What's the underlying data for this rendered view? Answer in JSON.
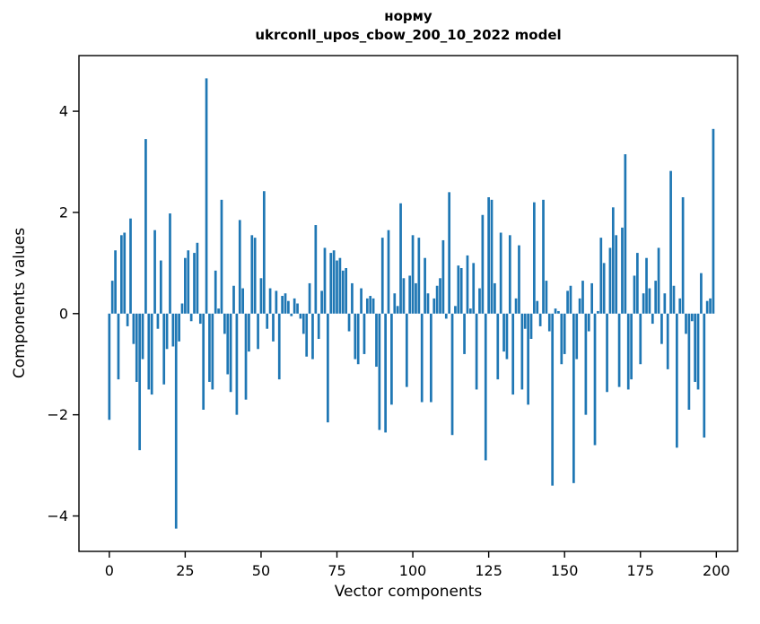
{
  "chart_data": {
    "type": "bar",
    "title_line1": "норму",
    "title_line2": "ukrconll_upos_cbow_200_10_2022 model",
    "xlabel": "Vector components",
    "ylabel": "Components values",
    "bar_color": "#1f77b4",
    "grid": false,
    "legend": "none",
    "xticks": [
      0,
      25,
      50,
      75,
      100,
      125,
      150,
      175,
      200
    ],
    "yticks": [
      -4,
      -2,
      0,
      2,
      4
    ],
    "xlim": [
      -10,
      207
    ],
    "ylim": [
      -4.7,
      5.1
    ],
    "x_start": 0,
    "values": [
      -2.1,
      0.65,
      1.25,
      -1.3,
      1.55,
      1.6,
      -0.25,
      1.88,
      -0.6,
      -1.35,
      -2.7,
      -0.9,
      3.45,
      -1.5,
      -1.6,
      1.65,
      -0.3,
      1.05,
      -1.4,
      -0.7,
      1.98,
      -0.65,
      -4.25,
      -0.55,
      0.2,
      1.1,
      1.25,
      -0.15,
      1.2,
      1.4,
      -0.2,
      -1.9,
      4.65,
      -1.35,
      -1.5,
      0.85,
      0.1,
      2.25,
      -0.4,
      -1.2,
      -1.55,
      0.55,
      -2.0,
      1.85,
      0.5,
      -1.7,
      -0.75,
      1.55,
      1.5,
      -0.7,
      0.7,
      2.42,
      -0.3,
      0.5,
      -0.55,
      0.45,
      -1.3,
      0.35,
      0.4,
      0.25,
      -0.05,
      0.3,
      0.2,
      -0.1,
      -0.4,
      -0.85,
      0.6,
      -0.9,
      1.75,
      -0.5,
      0.45,
      1.3,
      -2.15,
      1.2,
      1.25,
      1.05,
      1.1,
      0.85,
      0.9,
      -0.35,
      0.6,
      -0.9,
      -1.0,
      0.5,
      -0.8,
      0.3,
      0.35,
      0.3,
      -1.05,
      -2.3,
      1.5,
      -2.35,
      1.65,
      -1.8,
      0.4,
      0.15,
      2.18,
      0.7,
      -1.45,
      0.75,
      1.55,
      0.6,
      1.5,
      -1.75,
      1.1,
      0.4,
      -1.75,
      0.3,
      0.55,
      0.7,
      1.45,
      -0.1,
      2.4,
      -2.4,
      0.15,
      0.95,
      0.9,
      -0.8,
      1.15,
      0.1,
      1.0,
      -1.5,
      0.5,
      1.95,
      -2.9,
      2.3,
      2.25,
      0.6,
      -1.3,
      1.6,
      -0.75,
      -0.9,
      1.55,
      -1.6,
      0.3,
      1.35,
      -1.5,
      -0.3,
      -1.8,
      -0.5,
      2.2,
      0.25,
      -0.25,
      2.25,
      0.65,
      -0.35,
      -3.4,
      0.1,
      0.05,
      -1.0,
      -0.8,
      0.45,
      0.55,
      -3.35,
      -0.9,
      0.3,
      0.65,
      -2.0,
      -0.35,
      0.6,
      -2.6,
      0.05,
      1.5,
      1.0,
      -1.55,
      1.3,
      2.1,
      1.55,
      -1.45,
      1.7,
      3.15,
      -1.5,
      -1.3,
      0.75,
      1.2,
      -1.0,
      0.4,
      1.1,
      0.5,
      -0.2,
      0.65,
      1.3,
      -0.6,
      0.4,
      -1.1,
      2.82,
      0.55,
      -2.65,
      0.3,
      2.3,
      -0.4,
      -1.9,
      -0.15,
      -1.35,
      -1.5,
      0.8,
      -2.45,
      0.25,
      0.3,
      3.65
    ]
  }
}
